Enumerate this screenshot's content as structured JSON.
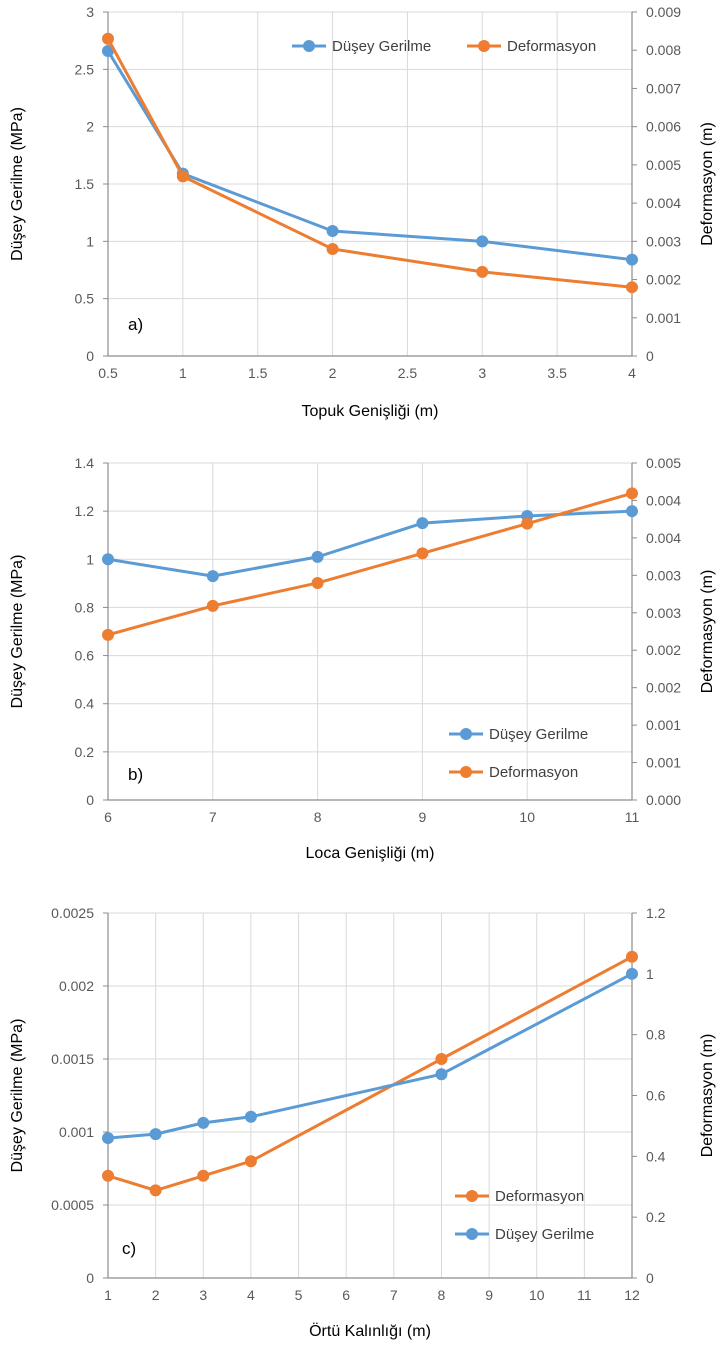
{
  "colors": {
    "blue": "#5B9BD5",
    "orange": "#ED7D31",
    "grid": "#D9D9D9",
    "axis": "#8C8C8C"
  },
  "chart_data": [
    {
      "type": "line",
      "label": "a)",
      "xlabel": "Topuk Genişliği (m)",
      "ylabel": "Düşey Gerilme (MPa)",
      "y2label": "Deformasyon (m)",
      "xlim": [
        0.5,
        4
      ],
      "x_ticks": [
        "0.5",
        "1",
        "1.5",
        "2",
        "2.5",
        "3",
        "3.5",
        "4"
      ],
      "ylim": [
        0,
        3
      ],
      "y_ticks": [
        "0",
        "0.5",
        "1",
        "1.5",
        "2",
        "2.5",
        "3"
      ],
      "y2lim": [
        0,
        0.009
      ],
      "y2_ticks": [
        "0",
        "0.001",
        "0.002",
        "0.003",
        "0.004",
        "0.005",
        "0.006",
        "0.007",
        "0.008",
        "0.009"
      ],
      "legend_position": "top-right",
      "series": [
        {
          "name": "Düşey Gerilme",
          "axis": "left",
          "color": "#5B9BD5",
          "x": [
            0.5,
            1,
            2,
            3,
            4
          ],
          "values": [
            2.66,
            1.59,
            1.09,
            1.0,
            0.84
          ]
        },
        {
          "name": "Deformasyon",
          "axis": "right",
          "color": "#ED7D31",
          "x": [
            0.5,
            1,
            2,
            3,
            4
          ],
          "values": [
            0.0083,
            0.0047,
            0.0028,
            0.0022,
            0.0018
          ]
        }
      ]
    },
    {
      "type": "line",
      "label": "b)",
      "xlabel": "Loca Genişliği (m)",
      "ylabel": "Düşey Gerilme (MPa)",
      "y2label": "Deformasyon (m)",
      "xlim": [
        6,
        11
      ],
      "x_ticks": [
        "6",
        "7",
        "8",
        "9",
        "10",
        "11"
      ],
      "ylim": [
        0,
        1.4
      ],
      "y_ticks": [
        "0",
        "0.2",
        "0.4",
        "0.6",
        "0.8",
        "1",
        "1.2",
        "1.4"
      ],
      "y2lim": [
        0,
        0.005
      ],
      "y2_ticks": [
        "0.000",
        "0.001",
        "0.001",
        "0.002",
        "0.002",
        "0.003",
        "0.003",
        "0.004",
        "0.004",
        "0.005"
      ],
      "legend_position": "bottom-right",
      "series": [
        {
          "name": "Düşey Gerilme",
          "axis": "left",
          "color": "#5B9BD5",
          "x": [
            6,
            7,
            8,
            9,
            10,
            11
          ],
          "values": [
            1.0,
            0.93,
            1.01,
            1.15,
            1.18,
            1.2
          ]
        },
        {
          "name": "Deformasyon",
          "axis": "right",
          "color": "#ED7D31",
          "x": [
            6,
            7,
            8,
            9,
            10,
            11
          ],
          "values": [
            0.00245,
            0.00288,
            0.00322,
            0.00366,
            0.0041,
            0.00455
          ]
        }
      ]
    },
    {
      "type": "line",
      "label": "c)",
      "xlabel": "Örtü Kalınlığı (m)",
      "ylabel": "Düşey Gerilme (MPa)",
      "y2label": "Deformasyon (m)",
      "xlim": [
        1,
        12
      ],
      "x_ticks": [
        "1",
        "2",
        "3",
        "4",
        "5",
        "6",
        "7",
        "8",
        "9",
        "10",
        "11",
        "12"
      ],
      "ylim": [
        0,
        0.0025
      ],
      "y_ticks": [
        "0",
        "0.0005",
        "0.001",
        "0.0015",
        "0.002",
        "0.0025"
      ],
      "y2lim": [
        0,
        1.2
      ],
      "y2_ticks": [
        "0",
        "0.2",
        "0.4",
        "0.6",
        "0.8",
        "1",
        "1.2"
      ],
      "legend_position": "bottom-right",
      "series": [
        {
          "name": "Deformasyon",
          "axis": "left",
          "color": "#ED7D31",
          "x": [
            1,
            2,
            3,
            4,
            8,
            12
          ],
          "values": [
            0.0007,
            0.0006,
            0.0007,
            0.0008,
            0.0015,
            0.0022
          ]
        },
        {
          "name": "Düşey Gerilme",
          "axis": "right",
          "color": "#5B9BD5",
          "x": [
            1,
            2,
            3,
            4,
            8,
            12
          ],
          "values": [
            0.46,
            0.473,
            0.51,
            0.53,
            0.67,
            1.0
          ]
        }
      ]
    }
  ]
}
